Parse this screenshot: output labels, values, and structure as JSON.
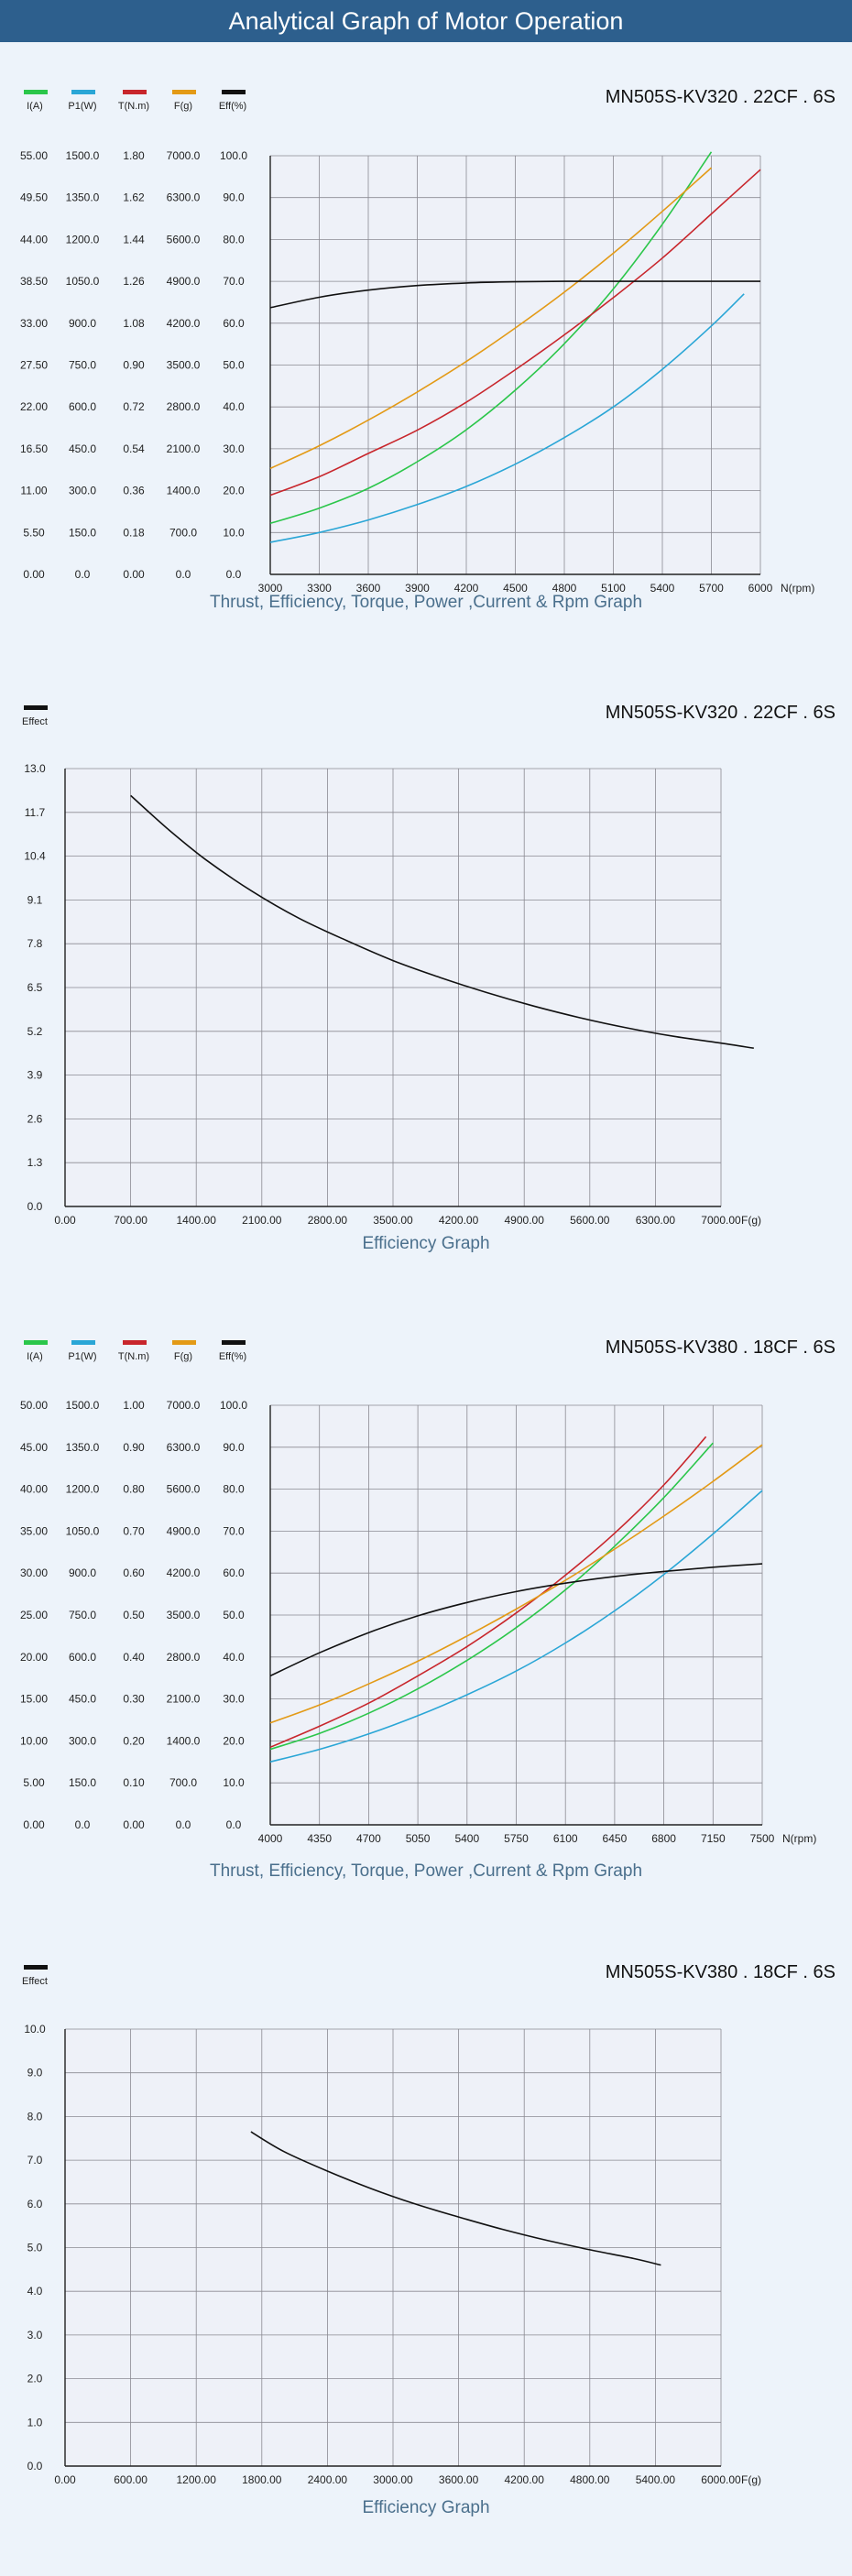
{
  "banner": {
    "title": "Analytical Graph of Motor Operation"
  },
  "chart_data": [
    {
      "type": "line",
      "title": "MN505S-KV320 . 22CF . 6S",
      "caption": "Thrust, Efficiency, Torque, Power ,Current & Rpm Graph",
      "xlabel": "N(rpm)",
      "x_ticks": [
        "3000",
        "3300",
        "3600",
        "3900",
        "4200",
        "4500",
        "4800",
        "5100",
        "5400",
        "5700",
        "6000"
      ],
      "xlim": [
        3000,
        6000
      ],
      "grid": true,
      "legend": [
        {
          "label": "I(A)",
          "color": "#2bc64a"
        },
        {
          "label": "P1(W)",
          "color": "#2aa6d6"
        },
        {
          "label": "T(N.m)",
          "color": "#c8262c"
        },
        {
          "label": "F(g)",
          "color": "#e39a16"
        },
        {
          "label": "Eff(%)",
          "color": "#111111"
        }
      ],
      "y_axes": [
        {
          "ticks": [
            "0.00",
            "5.50",
            "11.00",
            "16.50",
            "22.00",
            "27.50",
            "33.00",
            "38.50",
            "44.00",
            "49.50",
            "55.00"
          ]
        },
        {
          "ticks": [
            "0.0",
            "150.0",
            "300.0",
            "450.0",
            "600.0",
            "750.0",
            "900.0",
            "1050.0",
            "1200.0",
            "1350.0",
            "1500.0"
          ]
        },
        {
          "ticks": [
            "0.00",
            "0.18",
            "0.36",
            "0.54",
            "0.72",
            "0.90",
            "1.08",
            "1.26",
            "1.44",
            "1.62",
            "1.80"
          ]
        },
        {
          "ticks": [
            "0.0",
            "700.0",
            "1400.0",
            "2100.0",
            "2800.0",
            "3500.0",
            "4200.0",
            "4900.0",
            "5600.0",
            "6300.0",
            "7000.0"
          ]
        },
        {
          "ticks": [
            "0.0",
            "10.0",
            "20.0",
            "30.0",
            "40.0",
            "50.0",
            "60.0",
            "70.0",
            "80.0",
            "90.0",
            "100.0"
          ]
        }
      ],
      "series": [
        {
          "name": "I(A)",
          "color": "#2bc64a",
          "x": [
            3000,
            3300,
            3600,
            3900,
            4200,
            4500,
            4800,
            5100,
            5400,
            5700
          ],
          "y": [
            6.7,
            8.7,
            11.3,
            14.8,
            19.0,
            24.2,
            30.3,
            37.5,
            46.0,
            55.5
          ]
        },
        {
          "name": "P1(W)",
          "color": "#2aa6d6",
          "x": [
            3000,
            3300,
            3600,
            3900,
            4200,
            4500,
            4800,
            5100,
            5400,
            5700,
            5900
          ],
          "y": [
            115,
            150,
            195,
            250,
            315,
            395,
            490,
            600,
            735,
            890,
            1005
          ]
        },
        {
          "name": "T(N.m)",
          "color": "#c8262c",
          "x": [
            3000,
            3300,
            3600,
            3900,
            4200,
            4500,
            4800,
            5100,
            5400,
            5700,
            6000
          ],
          "y": [
            0.34,
            0.42,
            0.52,
            0.62,
            0.74,
            0.88,
            1.03,
            1.19,
            1.36,
            1.55,
            1.74
          ]
        },
        {
          "name": "F(g)",
          "color": "#e39a16",
          "x": [
            3000,
            3300,
            3600,
            3900,
            4200,
            4500,
            4800,
            5100,
            5400,
            5700
          ],
          "y": [
            1770,
            2150,
            2580,
            3050,
            3560,
            4120,
            4720,
            5370,
            6070,
            6800
          ]
        },
        {
          "name": "Eff(%)",
          "color": "#111111",
          "x": [
            3000,
            3300,
            3600,
            3900,
            4200,
            4500,
            4800,
            5100,
            5400,
            5700,
            6000
          ],
          "y": [
            63.7,
            66.2,
            67.9,
            69.0,
            69.6,
            69.9,
            70.0,
            70.0,
            70.0,
            70.0,
            70.0
          ]
        }
      ]
    },
    {
      "type": "line",
      "title": "MN505S-KV320 . 22CF . 6S",
      "caption": "Efficiency Graph",
      "xlabel": "F(g)",
      "legend": [
        {
          "label": "Effect",
          "color": "#111111"
        }
      ],
      "xlim": [
        0,
        7000
      ],
      "ylim": [
        0,
        13
      ],
      "x_ticks": [
        "0.00",
        "700.00",
        "1400.00",
        "2100.00",
        "2800.00",
        "3500.00",
        "4200.00",
        "4900.00",
        "5600.00",
        "6300.00",
        "7000.00"
      ],
      "y_ticks": [
        "0.0",
        "1.3",
        "2.6",
        "3.9",
        "5.2",
        "6.5",
        "7.8",
        "9.1",
        "10.4",
        "11.7",
        "13.0"
      ],
      "grid": true,
      "series": [
        {
          "name": "Effect",
          "color": "#111111",
          "x": [
            700,
            1100,
            1500,
            2000,
            2500,
            3000,
            3500,
            4000,
            4500,
            5000,
            5500,
            6000,
            6500,
            7000,
            7350
          ],
          "y": [
            12.2,
            11.2,
            10.3,
            9.35,
            8.55,
            7.9,
            7.3,
            6.8,
            6.35,
            5.95,
            5.6,
            5.3,
            5.05,
            4.85,
            4.7
          ]
        }
      ]
    },
    {
      "type": "line",
      "title": "MN505S-KV380 . 18CF . 6S",
      "caption": "Thrust, Efficiency, Torque, Power ,Current & Rpm Graph",
      "xlabel": "N(rpm)",
      "x_ticks": [
        "4000",
        "4350",
        "4700",
        "5050",
        "5400",
        "5750",
        "6100",
        "6450",
        "6800",
        "7150",
        "7500"
      ],
      "xlim": [
        4000,
        7500
      ],
      "grid": true,
      "legend": [
        {
          "label": "I(A)",
          "color": "#2bc64a"
        },
        {
          "label": "P1(W)",
          "color": "#2aa6d6"
        },
        {
          "label": "T(N.m)",
          "color": "#c8262c"
        },
        {
          "label": "F(g)",
          "color": "#e39a16"
        },
        {
          "label": "Eff(%)",
          "color": "#111111"
        }
      ],
      "y_axes": [
        {
          "ticks": [
            "0.00",
            "5.00",
            "10.00",
            "15.00",
            "20.00",
            "25.00",
            "30.00",
            "35.00",
            "40.00",
            "45.00",
            "50.00"
          ]
        },
        {
          "ticks": [
            "0.0",
            "150.0",
            "300.0",
            "450.0",
            "600.0",
            "750.0",
            "900.0",
            "1050.0",
            "1200.0",
            "1350.0",
            "1500.0"
          ]
        },
        {
          "ticks": [
            "0.00",
            "0.10",
            "0.20",
            "0.30",
            "0.40",
            "0.50",
            "0.60",
            "0.70",
            "0.80",
            "0.90",
            "1.00"
          ]
        },
        {
          "ticks": [
            "0.0",
            "700.0",
            "1400.0",
            "2100.0",
            "2800.0",
            "3500.0",
            "4200.0",
            "4900.0",
            "5600.0",
            "6300.0",
            "7000.0"
          ]
        },
        {
          "ticks": [
            "0.0",
            "10.0",
            "20.0",
            "30.0",
            "40.0",
            "50.0",
            "60.0",
            "70.0",
            "80.0",
            "90.0",
            "100.0"
          ]
        }
      ],
      "series": [
        {
          "name": "I(A)",
          "color": "#2bc64a",
          "x": [
            4000,
            4350,
            4700,
            5050,
            5400,
            5750,
            6100,
            6450,
            6800,
            7150
          ],
          "y": [
            9.0,
            10.9,
            13.3,
            16.2,
            19.6,
            23.5,
            28.0,
            33.2,
            39.0,
            45.5
          ]
        },
        {
          "name": "P1(W)",
          "color": "#2aa6d6",
          "x": [
            4000,
            4350,
            4700,
            5050,
            5400,
            5750,
            6100,
            6450,
            6800,
            7150,
            7500
          ],
          "y": [
            225,
            270,
            325,
            390,
            465,
            550,
            650,
            765,
            895,
            1040,
            1195
          ]
        },
        {
          "name": "T(N.m)",
          "color": "#c8262c",
          "x": [
            4000,
            4350,
            4700,
            5050,
            5400,
            5750,
            6100,
            6450,
            6800,
            7100
          ],
          "y": [
            0.185,
            0.235,
            0.29,
            0.355,
            0.425,
            0.505,
            0.595,
            0.695,
            0.81,
            0.925
          ]
        },
        {
          "name": "F(g)",
          "color": "#e39a16",
          "x": [
            4000,
            4350,
            4700,
            5050,
            5400,
            5750,
            6100,
            6450,
            6800,
            7150,
            7500
          ],
          "y": [
            1700,
            2000,
            2350,
            2730,
            3150,
            3600,
            4080,
            4600,
            5150,
            5730,
            6340
          ]
        },
        {
          "name": "Eff(%)",
          "color": "#111111",
          "x": [
            4000,
            4350,
            4700,
            5050,
            5400,
            5750,
            6100,
            6450,
            6800,
            7150,
            7500
          ],
          "y": [
            35.5,
            41.0,
            45.8,
            49.8,
            53.0,
            55.6,
            57.6,
            59.2,
            60.4,
            61.4,
            62.2
          ]
        }
      ]
    },
    {
      "type": "line",
      "title": "MN505S-KV380 . 18CF . 6S",
      "caption": "Efficiency Graph",
      "xlabel": "F(g)",
      "legend": [
        {
          "label": "Effect",
          "color": "#111111"
        }
      ],
      "xlim": [
        0,
        6000
      ],
      "ylim": [
        0,
        10
      ],
      "x_ticks": [
        "0.00",
        "600.00",
        "1200.00",
        "1800.00",
        "2400.00",
        "3000.00",
        "3600.00",
        "4200.00",
        "4800.00",
        "5400.00",
        "6000.00"
      ],
      "y_ticks": [
        "0.0",
        "1.0",
        "2.0",
        "3.0",
        "4.0",
        "5.0",
        "6.0",
        "7.0",
        "8.0",
        "9.0",
        "10.0"
      ],
      "grid": true,
      "series": [
        {
          "name": "Effect",
          "color": "#111111",
          "x": [
            1700,
            2000,
            2400,
            2800,
            3200,
            3600,
            4000,
            4400,
            4800,
            5200,
            5450
          ],
          "y": [
            7.65,
            7.2,
            6.75,
            6.35,
            6.0,
            5.7,
            5.42,
            5.17,
            4.95,
            4.75,
            4.6
          ]
        }
      ]
    }
  ]
}
